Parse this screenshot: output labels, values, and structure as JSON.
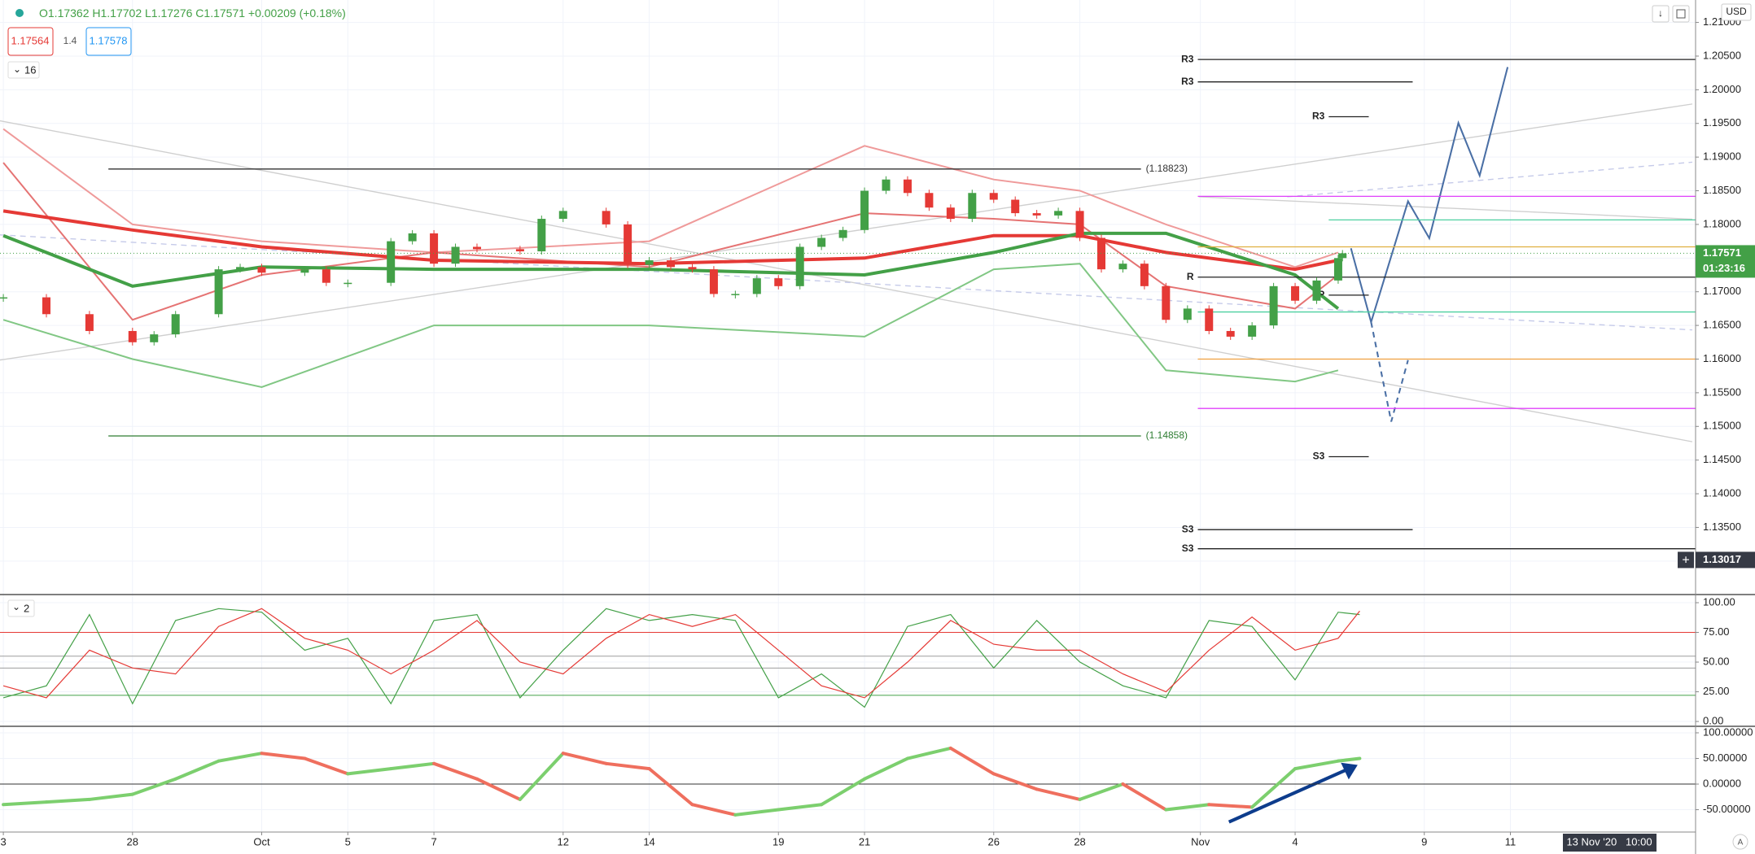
{
  "header": {
    "ohlc": [
      "O1.17362",
      "H1.17702",
      "L1.17276",
      "C1.17571",
      "+0.00209 (+0.18%)"
    ],
    "bid": "1.17564",
    "spread": "1.4",
    "ask": "1.17578",
    "interval": "16",
    "currency": "USD"
  },
  "chart_data": {
    "type": "candlestick",
    "x": [
      0,
      1,
      2,
      3,
      3.5,
      4,
      5,
      5.5,
      6,
      7,
      7.5,
      8,
      9,
      9.5,
      10,
      10.5,
      11,
      12,
      12.5,
      13,
      14,
      14.5,
      15,
      15.5,
      16,
      16.5,
      17,
      17.5,
      18,
      18.5,
      19,
      19.5,
      20,
      20.5,
      21,
      21.5,
      22,
      22.5,
      23,
      23.5,
      24,
      24.5,
      25,
      25.5,
      26,
      26.5,
      27,
      27.5,
      28,
      28.5,
      29,
      29.5,
      30,
      30.5,
      31,
      31.1
    ],
    "close": [
      1.16917,
      1.16667,
      1.16417,
      1.1625,
      1.16367,
      1.16667,
      1.17333,
      1.17367,
      1.17283,
      1.17333,
      1.17133,
      1.17133,
      1.1775,
      1.17867,
      1.17417,
      1.17667,
      1.17633,
      1.176,
      1.18083,
      1.182,
      1.18,
      1.174,
      1.17467,
      1.17367,
      1.17333,
      1.16967,
      1.16967,
      1.172,
      1.17083,
      1.17667,
      1.178,
      1.17917,
      1.185,
      1.18667,
      1.18467,
      1.1825,
      1.18083,
      1.18467,
      1.18367,
      1.18167,
      1.18133,
      1.182,
      1.178,
      1.17333,
      1.17417,
      1.17083,
      1.16583,
      1.1675,
      1.16417,
      1.16333,
      1.165,
      1.17083,
      1.16867,
      1.17167,
      1.175,
      1.17571
    ],
    "xlim": [
      -0.0775,
      39.3
    ],
    "ylim": [
      1.12527,
      1.21333
    ],
    "yticks": [
      {
        "value": 1.21,
        "label": "1.21000"
      },
      {
        "value": 1.205,
        "label": "1.20500"
      },
      {
        "value": 1.2,
        "label": "1.20000"
      },
      {
        "value": 1.195,
        "label": "1.19500"
      },
      {
        "value": 1.19,
        "label": "1.19000"
      },
      {
        "value": 1.185,
        "label": "1.18500"
      },
      {
        "value": 1.18,
        "label": "1.18000"
      },
      {
        "value": 1.175,
        "label": "1.17500"
      },
      {
        "value": 1.17,
        "label": "1.17000"
      },
      {
        "value": 1.165,
        "label": "1.16500"
      },
      {
        "value": 1.16,
        "label": "1.16000"
      },
      {
        "value": 1.155,
        "label": "1.15500"
      },
      {
        "value": 1.15,
        "label": "1.15000"
      },
      {
        "value": 1.145,
        "label": "1.14500"
      },
      {
        "value": 1.14,
        "label": "1.14000"
      },
      {
        "value": 1.135,
        "label": "1.13500"
      },
      {
        "value": 1.13,
        "label": "1.13000"
      }
    ],
    "xticks": [
      {
        "value": 0,
        "label": "3"
      },
      {
        "value": 3,
        "label": "28"
      },
      {
        "value": 6,
        "label": "Oct"
      },
      {
        "value": 8,
        "label": "5"
      },
      {
        "value": 10,
        "label": "7"
      },
      {
        "value": 13,
        "label": "12"
      },
      {
        "value": 15,
        "label": "14"
      },
      {
        "value": 18,
        "label": "19"
      },
      {
        "value": 20,
        "label": "21"
      },
      {
        "value": 23,
        "label": "26"
      },
      {
        "value": 25,
        "label": "28"
      },
      {
        "value": 27.8,
        "label": "Nov"
      },
      {
        "value": 30,
        "label": "4"
      },
      {
        "value": 33,
        "label": "9"
      },
      {
        "value": 35,
        "label": "11"
      }
    ],
    "grid": true,
    "up_color": "#43a047",
    "down_color": "#e53935",
    "overlay_x": [
      0,
      3,
      6,
      10,
      15,
      20,
      23,
      25,
      27,
      30,
      31
    ],
    "overlays": [
      {
        "color": "#ef9a9a",
        "width": 2,
        "values": [
          1.19417,
          1.18,
          1.1775,
          1.17583,
          1.1775,
          1.19167,
          1.18667,
          1.185,
          1.18,
          1.17367,
          1.17583
        ]
      },
      {
        "color": "#e57373",
        "width": 2,
        "values": [
          1.18917,
          1.16583,
          1.1725,
          1.17583,
          1.17367,
          1.18167,
          1.18083,
          1.18,
          1.17083,
          1.1675,
          1.1725
        ]
      },
      {
        "color": "#81c784",
        "width": 2,
        "values": [
          1.16583,
          1.16,
          1.15583,
          1.165,
          1.165,
          1.16333,
          1.17333,
          1.17417,
          1.15833,
          1.15667,
          1.15833
        ]
      },
      {
        "color": "#e53935",
        "width": 4,
        "values": [
          1.182,
          1.17917,
          1.17667,
          1.17467,
          1.17417,
          1.175,
          1.17833,
          1.17833,
          1.17583,
          1.17333,
          1.17467
        ]
      },
      {
        "color": "#43a047",
        "width": 4,
        "values": [
          1.17833,
          1.17083,
          1.17367,
          1.17333,
          1.17333,
          1.1725,
          1.17583,
          1.17867,
          1.17867,
          1.1725,
          1.1675
        ]
      }
    ],
    "levels": [
      {
        "value": 1.18823,
        "color": "#333333",
        "x_range": [
          2.44,
          26.42
        ],
        "label": "(1.18823)",
        "label_side": "right"
      },
      {
        "value": 1.14858,
        "color": "#2e7d32",
        "x_range": [
          2.44,
          26.42
        ],
        "label": "(1.14858)",
        "label_side": "right"
      },
      {
        "value": 1.2045,
        "color": "#222222",
        "x_range": [
          27.74,
          39.3
        ],
        "label": "R3",
        "label_side": "left"
      },
      {
        "value": 1.20117,
        "color": "#222222",
        "x_range": [
          27.74,
          32.73
        ],
        "label": "R3",
        "label_side": "left"
      },
      {
        "value": 1.196,
        "color": "#222222",
        "x_range": [
          30.78,
          31.71
        ],
        "label": "R3",
        "label_side": "left"
      },
      {
        "value": 1.18417,
        "color": "#e040fb",
        "x_range": [
          27.74,
          39.3
        ]
      },
      {
        "value": 1.18067,
        "color": "#4dd0a0",
        "x_range": [
          30.78,
          39.3
        ]
      },
      {
        "value": 1.17667,
        "color": "#e0b040",
        "x_range": [
          27.74,
          39.3
        ]
      },
      {
        "value": 1.17217,
        "color": "#222222",
        "x_range": [
          27.74,
          39.3
        ],
        "label": "R",
        "label_side": "left"
      },
      {
        "value": 1.1695,
        "color": "#222222",
        "x_range": [
          30.78,
          31.71
        ],
        "label": "P",
        "label_side": "left"
      },
      {
        "value": 1.167,
        "color": "#4dd0a0",
        "x_range": [
          27.74,
          39.3
        ]
      },
      {
        "value": 1.16,
        "color": "#f0a040",
        "x_range": [
          27.74,
          39.3
        ]
      },
      {
        "value": 1.15267,
        "color": "#e040fb",
        "x_range": [
          27.74,
          39.3
        ]
      },
      {
        "value": 1.1455,
        "color": "#222222",
        "x_range": [
          30.78,
          31.71
        ],
        "label": "S3",
        "label_side": "left"
      },
      {
        "value": 1.13467,
        "color": "#222222",
        "x_range": [
          27.74,
          32.73
        ],
        "label": "S3",
        "label_side": "left"
      },
      {
        "value": 1.13183,
        "color": "#222222",
        "x_range": [
          27.74,
          39.3
        ],
        "label": "S3",
        "label_side": "left"
      }
    ],
    "last_price": 1.17571,
    "last_price_color": "#43a047",
    "countdown": "01:23:16",
    "crosshair_price": 1.13017,
    "crosshair_date": "13 Nov '20   10:00",
    "panes": [
      {
        "type": "line",
        "label": "2",
        "ylim": [
          -2.7,
          105.5
        ],
        "yticks": [
          {
            "value": 100,
            "label": "100.00"
          },
          {
            "value": 75,
            "label": "75.00"
          },
          {
            "value": 50,
            "label": "50.00"
          },
          {
            "value": 25,
            "label": "25.00"
          },
          {
            "value": 0,
            "label": "0.00"
          }
        ],
        "levels": [
          {
            "value": 75,
            "color": "#e53935"
          },
          {
            "value": 55,
            "color": "#9e9e9e"
          },
          {
            "value": 45,
            "color": "#9e9e9e"
          },
          {
            "value": 22,
            "color": "#43a047"
          }
        ],
        "x": [
          0,
          1,
          2,
          3,
          4,
          5,
          6,
          7,
          8,
          9,
          10,
          11,
          12,
          13,
          14,
          15,
          16,
          17,
          18,
          19,
          20,
          21,
          22,
          23,
          24,
          25,
          26,
          27,
          28,
          29,
          30,
          31,
          31.5
        ],
        "series": [
          {
            "color": "#43a047",
            "values": [
              20,
              30,
              90,
              15,
              85,
              95,
              92,
              60,
              70,
              15,
              85,
              90,
              20,
              60,
              95,
              85,
              90,
              85,
              20,
              40,
              12,
              80,
              90,
              45,
              85,
              50,
              30,
              20,
              85,
              80,
              35,
              92,
              90
            ]
          },
          {
            "color": "#e53935",
            "values": [
              30,
              20,
              60,
              45,
              40,
              80,
              95,
              70,
              60,
              40,
              60,
              85,
              50,
              40,
              70,
              90,
              80,
              90,
              60,
              30,
              20,
              50,
              85,
              65,
              60,
              60,
              40,
              25,
              60,
              88,
              60,
              70,
              93
            ]
          }
        ]
      },
      {
        "type": "line",
        "ylim": [
          -92,
          112.7
        ],
        "yticks": [
          {
            "value": 100,
            "label": "100.00000"
          },
          {
            "value": 50,
            "label": "50.00000"
          },
          {
            "value": 0,
            "label": "0.00000"
          },
          {
            "value": -50,
            "label": "-50.00000"
          }
        ],
        "levels": [
          {
            "value": 0,
            "color": "#333333"
          }
        ],
        "x": [
          0,
          1,
          2,
          3,
          4,
          5,
          6,
          7,
          8,
          9,
          10,
          11,
          12,
          13,
          14,
          15,
          16,
          17,
          18,
          19,
          20,
          21,
          22,
          23,
          24,
          25,
          26,
          27,
          28,
          29,
          30,
          31,
          31.5
        ],
        "up_color": "#7ccf6e",
        "down_color": "#ef6f5e",
        "values": [
          -40,
          -35,
          -30,
          -20,
          10,
          45,
          60,
          50,
          20,
          30,
          40,
          10,
          -30,
          60,
          40,
          30,
          -40,
          -60,
          -50,
          -40,
          10,
          50,
          70,
          20,
          -10,
          -30,
          0,
          -50,
          -40,
          -45,
          30,
          45,
          50
        ]
      }
    ]
  }
}
